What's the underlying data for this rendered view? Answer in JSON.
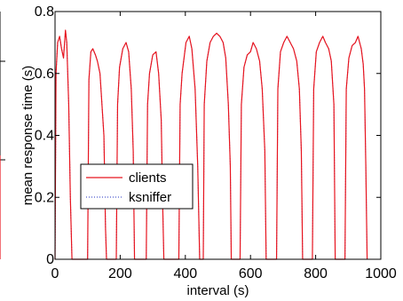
{
  "chart_data": {
    "type": "line",
    "xlabel": "interval (s)",
    "ylabel": "mean response time (s)",
    "xlim": [
      0,
      1000
    ],
    "ylim": [
      0,
      0.8
    ],
    "x_ticks": [
      0,
      200,
      400,
      600,
      800,
      1000
    ],
    "y_ticks": [
      0,
      0.2,
      0.4,
      0.6,
      0.8
    ],
    "x_tick_labels": [
      "0",
      "200",
      "400",
      "600",
      "800",
      "1000"
    ],
    "y_tick_labels": [
      "0",
      "0.2",
      "0.4",
      "0.6",
      "0.8"
    ],
    "grid": false,
    "legend_position": "lower-left",
    "series": [
      {
        "name": "clients",
        "color": "#e8141e",
        "style": "solid",
        "x": [
          0,
          3,
          8,
          14,
          20,
          26,
          32,
          36,
          42,
          47,
          52,
          57,
          100,
          104,
          110,
          116,
          124,
          130,
          138,
          144,
          150,
          155,
          158,
          188,
          192,
          198,
          208,
          218,
          226,
          234,
          240,
          244,
          280,
          284,
          290,
          300,
          310,
          318,
          326,
          330,
          334,
          380,
          384,
          390,
          402,
          412,
          420,
          430,
          438,
          444,
          455,
          458,
          466,
          476,
          486,
          496,
          506,
          516,
          524,
          532,
          538,
          541,
          568,
          572,
          580,
          590,
          600,
          608,
          618,
          628,
          636,
          644,
          648,
          680,
          684,
          692,
          702,
          712,
          722,
          732,
          742,
          750,
          756,
          760,
          790,
          794,
          802,
          812,
          822,
          830,
          840,
          848,
          856,
          860,
          890,
          894,
          902,
          912,
          922,
          930,
          940,
          946,
          950,
          954,
          958
        ],
        "y": [
          0.0,
          0.6,
          0.7,
          0.72,
          0.68,
          0.65,
          0.74,
          0.7,
          0.5,
          0.2,
          0.0,
          0.0,
          0.0,
          0.58,
          0.67,
          0.68,
          0.66,
          0.64,
          0.6,
          0.5,
          0.4,
          0.1,
          0.0,
          0.0,
          0.5,
          0.62,
          0.68,
          0.7,
          0.67,
          0.55,
          0.35,
          0.0,
          0.0,
          0.5,
          0.6,
          0.66,
          0.67,
          0.6,
          0.45,
          0.2,
          0.0,
          0.0,
          0.5,
          0.6,
          0.7,
          0.72,
          0.68,
          0.55,
          0.3,
          0.0,
          0.0,
          0.5,
          0.64,
          0.7,
          0.72,
          0.73,
          0.72,
          0.7,
          0.65,
          0.5,
          0.3,
          0.0,
          0.0,
          0.5,
          0.62,
          0.66,
          0.67,
          0.7,
          0.68,
          0.64,
          0.55,
          0.35,
          0.0,
          0.0,
          0.55,
          0.67,
          0.7,
          0.72,
          0.7,
          0.68,
          0.64,
          0.55,
          0.35,
          0.0,
          0.0,
          0.55,
          0.67,
          0.7,
          0.72,
          0.7,
          0.68,
          0.64,
          0.5,
          0.0,
          0.0,
          0.55,
          0.65,
          0.69,
          0.7,
          0.72,
          0.68,
          0.63,
          0.55,
          0.3,
          0.0
        ]
      },
      {
        "name": "ksniffer",
        "color": "#2030c0",
        "style": "dotted",
        "x": [
          0,
          3,
          8,
          14,
          20,
          26,
          32,
          36,
          42,
          47,
          52,
          57,
          100,
          104,
          110,
          116,
          124,
          130,
          138,
          144,
          150,
          155,
          158,
          188,
          192,
          198,
          208,
          218,
          226,
          234,
          240,
          244,
          280,
          284,
          290,
          300,
          310,
          318,
          326,
          330,
          334,
          380,
          384,
          390,
          402,
          412,
          420,
          430,
          438,
          444,
          455,
          458,
          466,
          476,
          486,
          496,
          506,
          516,
          524,
          532,
          538,
          541,
          568,
          572,
          580,
          590,
          600,
          608,
          618,
          628,
          636,
          644,
          648,
          680,
          684,
          692,
          702,
          712,
          722,
          732,
          742,
          750,
          756,
          760,
          790,
          794,
          802,
          812,
          822,
          830,
          840,
          848,
          856,
          860,
          890,
          894,
          902,
          912,
          922,
          930,
          940,
          946,
          950,
          954,
          958
        ],
        "y": [
          0.0,
          0.6,
          0.7,
          0.72,
          0.68,
          0.65,
          0.74,
          0.7,
          0.5,
          0.2,
          0.0,
          0.0,
          0.0,
          0.58,
          0.67,
          0.68,
          0.66,
          0.64,
          0.6,
          0.5,
          0.4,
          0.1,
          0.0,
          0.0,
          0.5,
          0.62,
          0.68,
          0.7,
          0.67,
          0.55,
          0.35,
          0.0,
          0.0,
          0.5,
          0.6,
          0.66,
          0.67,
          0.6,
          0.45,
          0.2,
          0.0,
          0.0,
          0.5,
          0.6,
          0.7,
          0.72,
          0.68,
          0.55,
          0.3,
          0.0,
          0.0,
          0.5,
          0.64,
          0.7,
          0.72,
          0.73,
          0.72,
          0.7,
          0.65,
          0.5,
          0.3,
          0.0,
          0.0,
          0.5,
          0.62,
          0.66,
          0.67,
          0.7,
          0.68,
          0.64,
          0.55,
          0.35,
          0.0,
          0.0,
          0.55,
          0.67,
          0.7,
          0.72,
          0.7,
          0.68,
          0.64,
          0.55,
          0.35,
          0.0,
          0.0,
          0.55,
          0.67,
          0.7,
          0.72,
          0.7,
          0.68,
          0.64,
          0.5,
          0.0,
          0.0,
          0.55,
          0.65,
          0.69,
          0.7,
          0.72,
          0.68,
          0.63,
          0.55,
          0.3,
          0.0
        ]
      }
    ]
  }
}
